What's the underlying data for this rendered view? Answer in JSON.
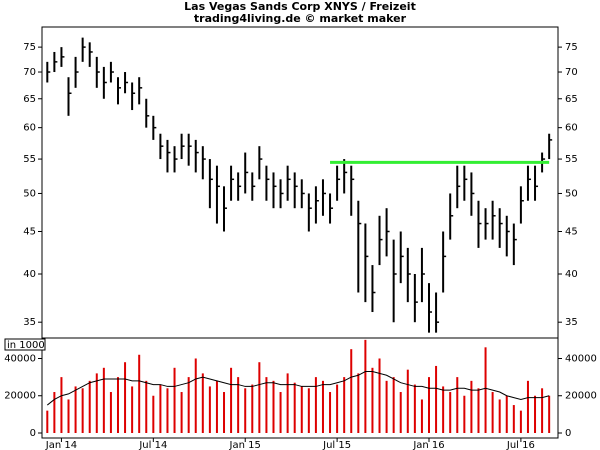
{
  "chart_data": {
    "type": "ohlc",
    "title": "Las Vegas Sands Corp XNYS / Freizeit",
    "subtitle": "trading4living.de © market maker",
    "x": [
      -4,
      -2,
      0,
      2,
      4,
      6,
      8,
      10,
      12,
      14,
      16,
      18,
      20,
      22,
      24,
      26,
      28,
      30,
      32,
      34,
      36,
      38,
      40,
      42,
      44,
      46,
      48,
      50,
      52,
      54,
      56,
      58,
      60,
      62,
      64,
      66,
      68,
      70,
      72,
      74,
      76,
      78,
      80,
      82,
      84,
      86,
      88,
      90,
      92,
      94,
      96,
      98,
      100,
      102,
      104,
      106,
      108,
      110,
      112,
      114,
      116,
      118,
      120,
      122,
      124,
      126,
      128,
      130,
      132,
      134,
      136,
      138
    ],
    "xlim": [
      -5.5,
      140.5
    ],
    "xticks": [
      {
        "value": 0,
        "label": "Jan 14"
      },
      {
        "value": 26,
        "label": "Jul 14"
      },
      {
        "value": 52,
        "label": "Jan 15"
      },
      {
        "value": 78,
        "label": "Jul 15"
      },
      {
        "value": 104,
        "label": "Jan 16"
      },
      {
        "value": 130,
        "label": "Jul 16"
      }
    ],
    "log_scale": true,
    "ylim": [
      33.5,
      79.3
    ],
    "yticks": [
      35,
      40,
      45,
      50,
      55,
      60,
      65,
      70,
      75
    ],
    "color": "#000000",
    "high": [
      72,
      74,
      75,
      69,
      73,
      77,
      76,
      73,
      71,
      72,
      69,
      70,
      68,
      69,
      65,
      62,
      59,
      58,
      57,
      59,
      59,
      58,
      57,
      55,
      54,
      51,
      54,
      53,
      56,
      53,
      57,
      54,
      53,
      52,
      54,
      53,
      52,
      50,
      51,
      52,
      50,
      54,
      55,
      54,
      49,
      46,
      41,
      47,
      48,
      44,
      45,
      43,
      40,
      43,
      39,
      38,
      45,
      50,
      54,
      54,
      53,
      49,
      48,
      49,
      48,
      47,
      46,
      51,
      54,
      54,
      56,
      59
    ],
    "low": [
      68,
      70,
      71,
      62,
      67,
      72,
      71,
      67,
      65,
      68,
      64,
      66,
      63,
      64,
      60,
      58,
      55,
      53,
      53,
      55,
      54,
      53,
      52,
      48,
      46,
      45,
      49,
      49,
      50,
      49,
      52,
      49,
      48,
      48,
      49,
      48,
      48,
      45,
      46,
      47,
      46,
      49,
      50,
      47,
      38,
      37,
      36,
      41,
      42,
      35,
      39,
      37,
      35,
      37,
      34,
      34,
      38,
      44,
      48,
      49,
      47,
      43,
      44,
      44,
      43,
      42,
      41,
      46,
      49,
      49,
      53,
      55
    ],
    "close": [
      70,
      72,
      73,
      66,
      70,
      75,
      74,
      70,
      68,
      70,
      67,
      68,
      66,
      67,
      62,
      60,
      57,
      56,
      55,
      57,
      57,
      56,
      55,
      52,
      51,
      48,
      52,
      51,
      53,
      51,
      55,
      52,
      51,
      50,
      52,
      51,
      50,
      48,
      49,
      50,
      48,
      52,
      53,
      52,
      46,
      42,
      38,
      44,
      45,
      40,
      42,
      40,
      37,
      40,
      36,
      35,
      42,
      47,
      51,
      52,
      50,
      46,
      46,
      47,
      46,
      45,
      44,
      49,
      52,
      51,
      55,
      58
    ],
    "resistance": {
      "value": 54.5,
      "x": [
        76,
        138
      ],
      "color": "#33ee33"
    },
    "volume": {
      "label": "in 1000",
      "color": "#dd0000",
      "ma_color": "#000000",
      "ylim": [
        0,
        51000
      ],
      "yticks": [
        0,
        20000,
        40000
      ],
      "values": [
        12000,
        22000,
        30000,
        18000,
        25000,
        24000,
        28000,
        32000,
        35000,
        22000,
        30000,
        38000,
        25000,
        42000,
        28000,
        20000,
        26000,
        24000,
        35000,
        22000,
        30000,
        40000,
        32000,
        25000,
        28000,
        22000,
        35000,
        30000,
        24000,
        26000,
        38000,
        30000,
        28000,
        22000,
        32000,
        27000,
        25000,
        24000,
        30000,
        28000,
        22000,
        26000,
        30000,
        45000,
        32000,
        50000,
        35000,
        40000,
        28000,
        30000,
        22000,
        34000,
        26000,
        18000,
        30000,
        36000,
        25000,
        22000,
        30000,
        20000,
        28000,
        24000,
        46000,
        22000,
        18000,
        20000,
        15000,
        12000,
        28000,
        20000,
        24000,
        20000
      ],
      "ma": [
        15000,
        18000,
        20000,
        21000,
        23000,
        25000,
        27000,
        28000,
        29000,
        29000,
        29000,
        29000,
        28000,
        28000,
        27000,
        26000,
        26000,
        25000,
        25000,
        26000,
        27000,
        29000,
        30000,
        29000,
        28000,
        27000,
        26000,
        26000,
        25000,
        25000,
        26000,
        27000,
        27000,
        26000,
        26000,
        26000,
        25000,
        25000,
        25000,
        26000,
        26000,
        27000,
        28000,
        30000,
        31000,
        33000,
        33000,
        32000,
        31000,
        29000,
        27000,
        26000,
        25000,
        25000,
        24000,
        24000,
        23000,
        23000,
        24000,
        24000,
        23000,
        23000,
        24000,
        23000,
        22000,
        20000,
        19000,
        18000,
        19000,
        19000,
        19000,
        20000
      ]
    }
  }
}
